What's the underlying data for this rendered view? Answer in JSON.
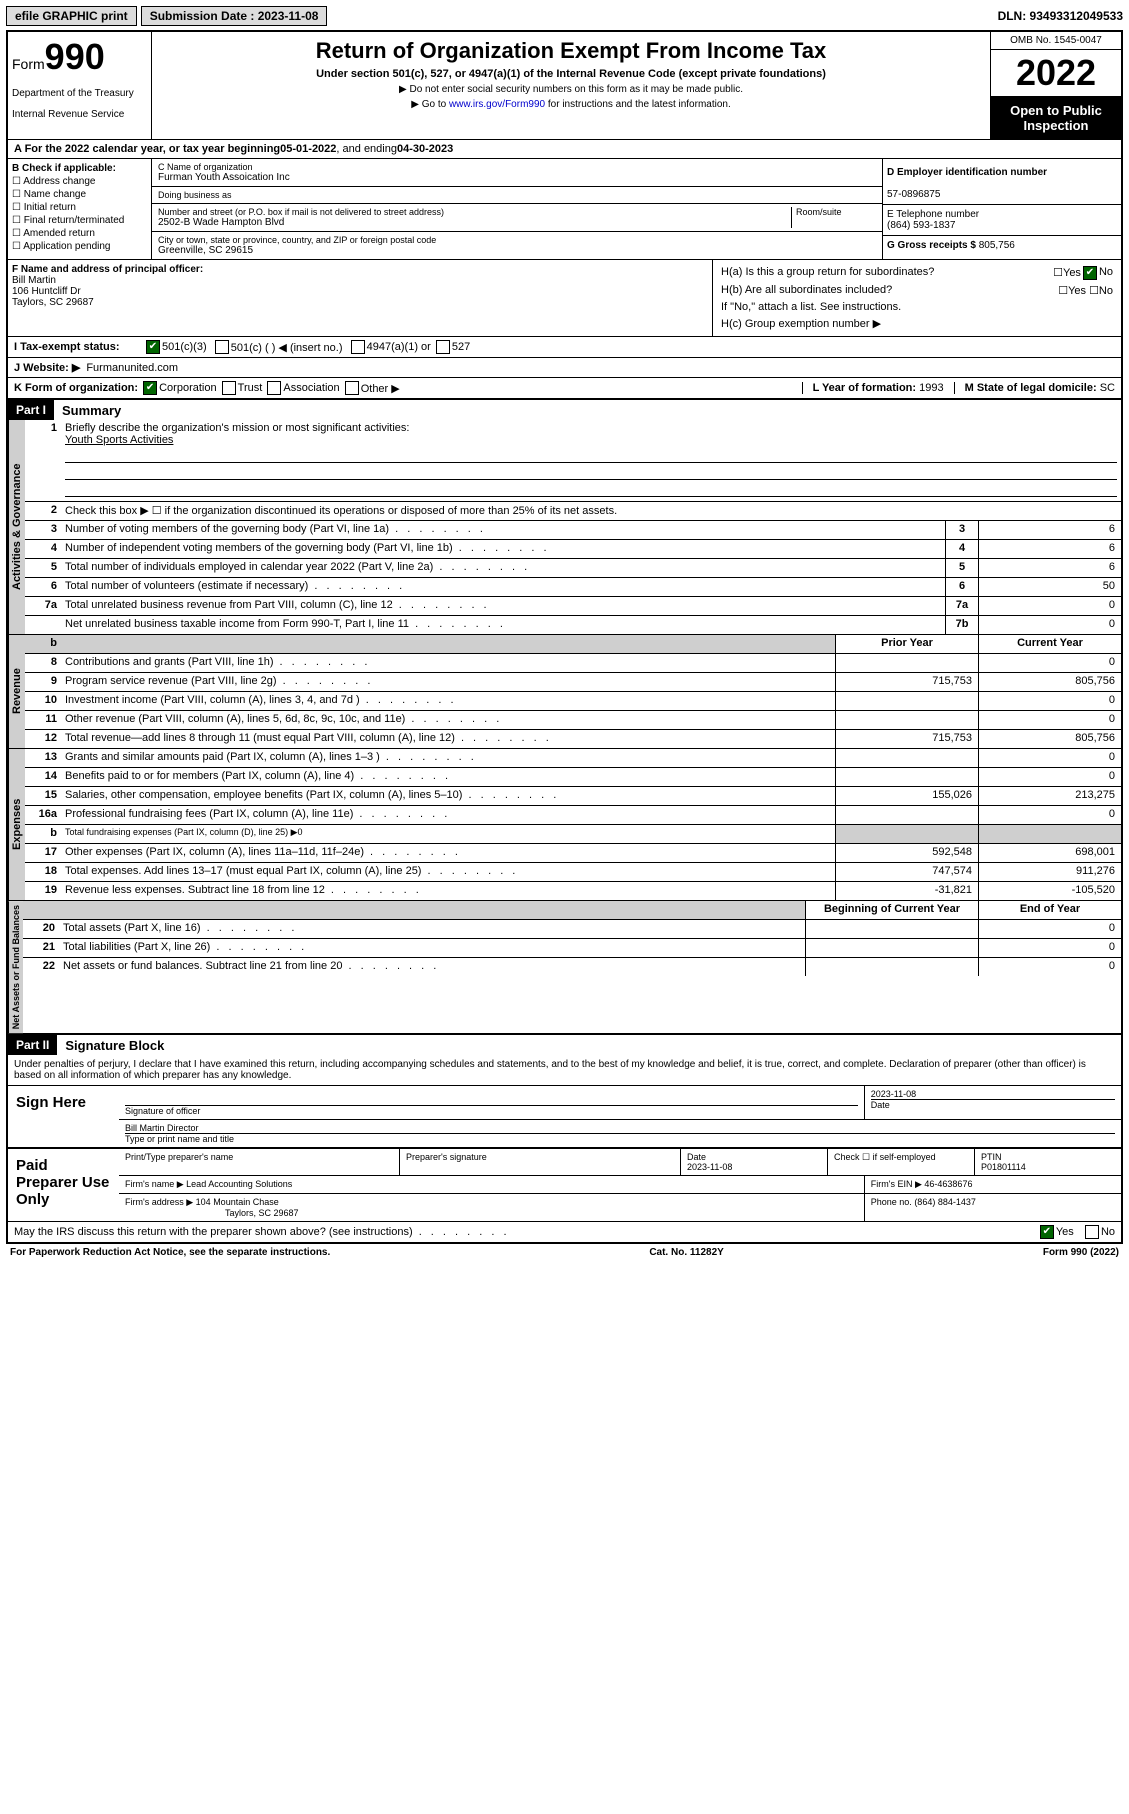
{
  "topbar": {
    "efile": "efile GRAPHIC print",
    "submission_label": "Submission Date : 2023-11-08",
    "dln": "DLN: 93493312049533"
  },
  "header": {
    "form_prefix": "Form",
    "form_number": "990",
    "dept": "Department of the Treasury",
    "irs": "Internal Revenue Service",
    "title": "Return of Organization Exempt From Income Tax",
    "subtitle": "Under section 501(c), 527, or 4947(a)(1) of the Internal Revenue Code (except private foundations)",
    "note1": "▶ Do not enter social security numbers on this form as it may be made public.",
    "note2_pre": "▶ Go to ",
    "note2_link": "www.irs.gov/Form990",
    "note2_post": " for instructions and the latest information.",
    "omb": "OMB No. 1545-0047",
    "year": "2022",
    "open": "Open to Public Inspection"
  },
  "period": {
    "label_a": "A For the 2022 calendar year, or tax year beginning ",
    "begin": "05-01-2022",
    "mid": " , and ending ",
    "end": "04-30-2023"
  },
  "colB": {
    "header": "B Check if applicable:",
    "opts": [
      "Address change",
      "Name change",
      "Initial return",
      "Final return/terminated",
      "Amended return",
      "Application pending"
    ]
  },
  "colC": {
    "name_label": "C Name of organization",
    "name": "Furman Youth Assoication Inc",
    "dba_label": "Doing business as",
    "street_label": "Number and street (or P.O. box if mail is not delivered to street address)",
    "room_label": "Room/suite",
    "street": "2502-B Wade Hampton Blvd",
    "city_label": "City or town, state or province, country, and ZIP or foreign postal code",
    "city": "Greenville, SC  29615"
  },
  "colD": {
    "ein_label": "D Employer identification number",
    "ein": "57-0896875",
    "phone_label": "E Telephone number",
    "phone": "(864) 593-1837",
    "gross_label": "G Gross receipts $",
    "gross": "805,756"
  },
  "rowF": {
    "label": "F Name and address of principal officer:",
    "name": "Bill Martin",
    "addr1": "106 Huntcliff Dr",
    "addr2": "Taylors, SC  29687"
  },
  "rowH": {
    "ha_label": "H(a)  Is this a group return for subordinates?",
    "hb_label": "H(b)  Are all subordinates included?",
    "hb_note": "If \"No,\" attach a list. See instructions.",
    "hc_label": "H(c)  Group exemption number ▶"
  },
  "rowI": {
    "label": "I  Tax-exempt status:",
    "o1": "501(c)(3)",
    "o2": "501(c) (  ) ◀ (insert no.)",
    "o3": "4947(a)(1) or",
    "o4": "527"
  },
  "rowJ": {
    "label": "J  Website: ▶",
    "val": "Furmanunited.com"
  },
  "rowK": {
    "label": "K Form of organization:",
    "o1": "Corporation",
    "o2": "Trust",
    "o3": "Association",
    "o4": "Other ▶"
  },
  "rowL": {
    "label": "L Year of formation:",
    "val": "1993"
  },
  "rowM": {
    "label": "M State of legal domicile:",
    "val": "SC"
  },
  "parts": {
    "p1": "Part I",
    "p1_title": "Summary",
    "p2": "Part II",
    "p2_title": "Signature Block"
  },
  "summary": {
    "q1_label": "Briefly describe the organization's mission or most significant activities:",
    "q1_val": "Youth Sports Activities",
    "q2_label": "Check this box ▶ ☐  if the organization discontinued its operations or disposed of more than 25% of its net assets.",
    "lines": [
      {
        "n": "3",
        "t": "Number of voting members of the governing body (Part VI, line 1a)",
        "c": "3",
        "v": "6"
      },
      {
        "n": "4",
        "t": "Number of independent voting members of the governing body (Part VI, line 1b)",
        "c": "4",
        "v": "6"
      },
      {
        "n": "5",
        "t": "Total number of individuals employed in calendar year 2022 (Part V, line 2a)",
        "c": "5",
        "v": "6"
      },
      {
        "n": "6",
        "t": "Total number of volunteers (estimate if necessary)",
        "c": "6",
        "v": "50"
      },
      {
        "n": "7a",
        "t": "Total unrelated business revenue from Part VIII, column (C), line 12",
        "c": "7a",
        "v": "0"
      },
      {
        "n": "",
        "t": "Net unrelated business taxable income from Form 990-T, Part I, line 11",
        "c": "7b",
        "v": "0"
      }
    ],
    "col_h1": "Prior Year",
    "col_h2": "Current Year",
    "rev": [
      {
        "n": "8",
        "t": "Contributions and grants (Part VIII, line 1h)",
        "p": "",
        "c": "0"
      },
      {
        "n": "9",
        "t": "Program service revenue (Part VIII, line 2g)",
        "p": "715,753",
        "c": "805,756"
      },
      {
        "n": "10",
        "t": "Investment income (Part VIII, column (A), lines 3, 4, and 7d )",
        "p": "",
        "c": "0"
      },
      {
        "n": "11",
        "t": "Other revenue (Part VIII, column (A), lines 5, 6d, 8c, 9c, 10c, and 11e)",
        "p": "",
        "c": "0"
      },
      {
        "n": "12",
        "t": "Total revenue—add lines 8 through 11 (must equal Part VIII, column (A), line 12)",
        "p": "715,753",
        "c": "805,756"
      }
    ],
    "exp": [
      {
        "n": "13",
        "t": "Grants and similar amounts paid (Part IX, column (A), lines 1–3 )",
        "p": "",
        "c": "0"
      },
      {
        "n": "14",
        "t": "Benefits paid to or for members (Part IX, column (A), line 4)",
        "p": "",
        "c": "0"
      },
      {
        "n": "15",
        "t": "Salaries, other compensation, employee benefits (Part IX, column (A), lines 5–10)",
        "p": "155,026",
        "c": "213,275"
      },
      {
        "n": "16a",
        "t": "Professional fundraising fees (Part IX, column (A), line 11e)",
        "p": "",
        "c": "0"
      },
      {
        "n": "b",
        "t": "Total fundraising expenses (Part IX, column (D), line 25) ▶0",
        "p": "",
        "c": "",
        "shade": true
      },
      {
        "n": "17",
        "t": "Other expenses (Part IX, column (A), lines 11a–11d, 11f–24e)",
        "p": "592,548",
        "c": "698,001"
      },
      {
        "n": "18",
        "t": "Total expenses. Add lines 13–17 (must equal Part IX, column (A), line 25)",
        "p": "747,574",
        "c": "911,276"
      },
      {
        "n": "19",
        "t": "Revenue less expenses. Subtract line 18 from line 12",
        "p": "-31,821",
        "c": "-105,520"
      }
    ],
    "net_h1": "Beginning of Current Year",
    "net_h2": "End of Year",
    "net": [
      {
        "n": "20",
        "t": "Total assets (Part X, line 16)",
        "p": "",
        "c": "0"
      },
      {
        "n": "21",
        "t": "Total liabilities (Part X, line 26)",
        "p": "",
        "c": "0"
      },
      {
        "n": "22",
        "t": "Net assets or fund balances. Subtract line 21 from line 20",
        "p": "",
        "c": "0"
      }
    ]
  },
  "tabs": {
    "gov": "Activities & Governance",
    "rev": "Revenue",
    "exp": "Expenses",
    "net": "Net Assets or Fund Balances"
  },
  "sig": {
    "declaration": "Under penalties of perjury, I declare that I have examined this return, including accompanying schedules and statements, and to the best of my knowledge and belief, it is true, correct, and complete. Declaration of preparer (other than officer) is based on all information of which preparer has any knowledge.",
    "sign_here": "Sign Here",
    "sig_officer": "Signature of officer",
    "date": "Date",
    "date_val": "2023-11-08",
    "officer_name": "Bill Martin Director",
    "name_title": "Type or print name and title",
    "paid": "Paid Preparer Use Only",
    "prep_name_label": "Print/Type preparer's name",
    "prep_sig_label": "Preparer's signature",
    "prep_date_label": "Date",
    "prep_date": "2023-11-08",
    "check_self": "Check ☐ if self-employed",
    "ptin_label": "PTIN",
    "ptin": "P01801114",
    "firm_name_label": "Firm's name    ▶",
    "firm_name": "Lead Accounting Solutions",
    "firm_ein_label": "Firm's EIN ▶",
    "firm_ein": "46-4638676",
    "firm_addr_label": "Firm's address ▶",
    "firm_addr1": "104 Mountain Chase",
    "firm_addr2": "Taylors, SC  29687",
    "firm_phone_label": "Phone no.",
    "firm_phone": "(864) 884-1437",
    "discuss": "May the IRS discuss this return with the preparer shown above? (see instructions)"
  },
  "footer": {
    "left": "For Paperwork Reduction Act Notice, see the separate instructions.",
    "mid": "Cat. No. 11282Y",
    "right": "Form 990 (2022)"
  }
}
